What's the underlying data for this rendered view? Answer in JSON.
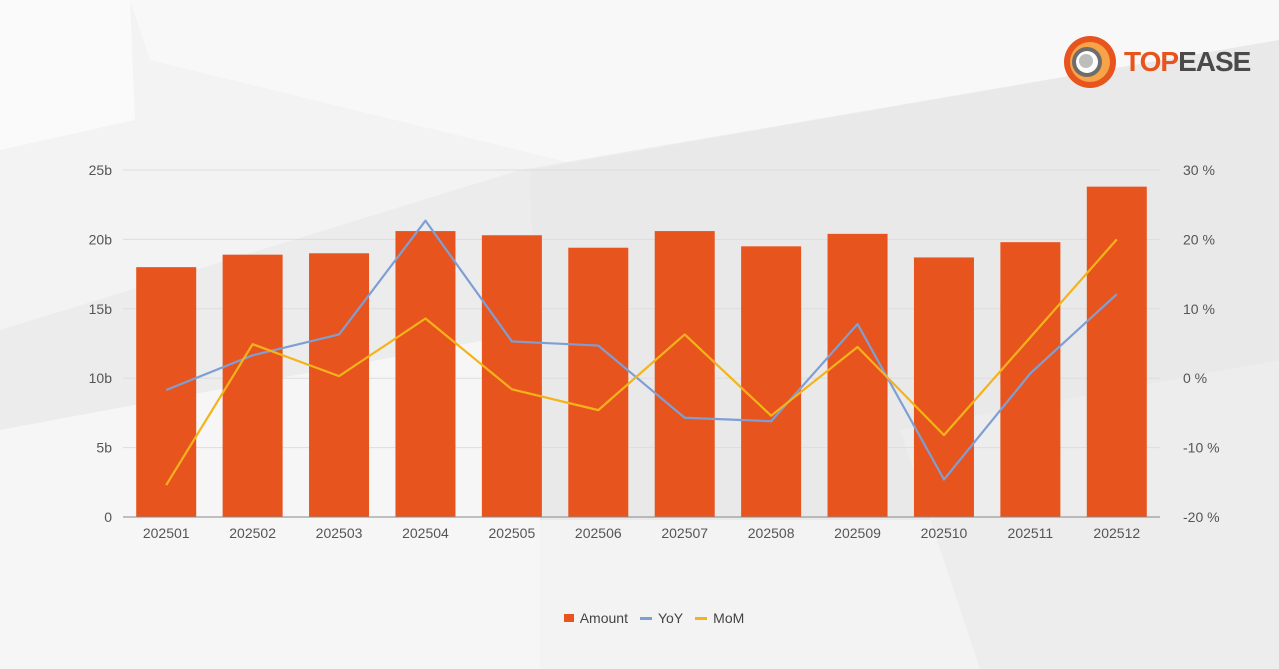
{
  "brand": {
    "logo_part1": "TOP",
    "logo_part2": "EASE",
    "colors": {
      "primary": "#e8541d",
      "dark": "#4a4a4a"
    }
  },
  "chart_data": {
    "type": "bar",
    "categories": [
      "202501",
      "202502",
      "202503",
      "202504",
      "202505",
      "202506",
      "202507",
      "202508",
      "202509",
      "202510",
      "202511",
      "202512"
    ],
    "series": [
      {
        "name": "Amount",
        "type": "bar",
        "axis": "left",
        "color": "#e8541d",
        "values": [
          18.0,
          18.9,
          19.0,
          20.6,
          20.3,
          19.4,
          20.6,
          19.5,
          20.4,
          18.7,
          19.8,
          23.8
        ]
      },
      {
        "name": "YoY",
        "type": "line",
        "axis": "right",
        "color": "#7f9fd3",
        "values": [
          -1.7,
          3.3,
          6.3,
          22.7,
          5.3,
          4.7,
          -5.7,
          -6.2,
          7.8,
          -14.6,
          0.7,
          12.1
        ]
      },
      {
        "name": "MoM",
        "type": "line",
        "axis": "right",
        "color": "#f5b31a",
        "values": [
          -15.4,
          4.9,
          0.3,
          8.6,
          -1.6,
          -4.6,
          6.3,
          -5.4,
          4.5,
          -8.2,
          5.9,
          20.0
        ]
      }
    ],
    "y_left": {
      "ylim": [
        0,
        25
      ],
      "ticks": [
        0,
        5,
        10,
        15,
        20,
        25
      ],
      "tick_labels": [
        "0",
        "5b",
        "10b",
        "15b",
        "20b",
        "25b"
      ]
    },
    "y_right": {
      "ylim": [
        -20,
        30
      ],
      "ticks": [
        -20,
        -10,
        0,
        10,
        20,
        30
      ],
      "tick_labels": [
        "-20 %",
        "-10 %",
        "0 %",
        "10 %",
        "20 %",
        "30 %"
      ]
    },
    "grid": true,
    "legend": "bottom-center"
  }
}
